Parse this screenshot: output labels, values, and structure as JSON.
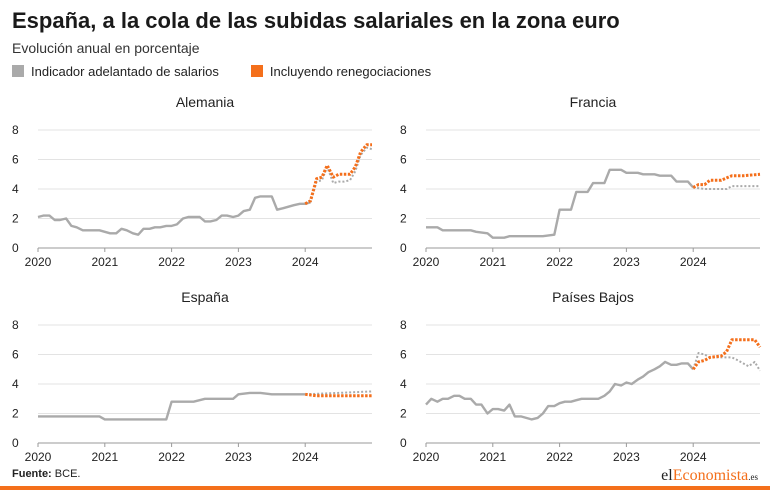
{
  "header": {
    "title": "España, a la cola de las subidas salariales en la zona euro",
    "subtitle": "Evolución anual en porcentaje"
  },
  "legend": {
    "items": [
      {
        "label": "Indicador adelantado de salarios",
        "color": "#aaaaaa"
      },
      {
        "label": "Incluyendo renegociaciones",
        "color": "#f46f1b"
      }
    ]
  },
  "footer": {
    "source_label": "Fuente:",
    "source_value": "BCE.",
    "brand_part1": "el",
    "brand_part2": "Economista",
    "brand_part3": ".es"
  },
  "chart_data": [
    {
      "type": "line",
      "title": "Alemania",
      "xlim": [
        2020,
        2025
      ],
      "ylim": [
        0,
        8
      ],
      "yticks": [
        0,
        2,
        4,
        6,
        8
      ],
      "xticks": [
        "2020",
        "2021",
        "2022",
        "2023",
        "2024"
      ],
      "series": [
        {
          "name": "Indicador adelantado de salarios",
          "color": "#aaaaaa",
          "x": [
            2020.0,
            2020.08,
            2020.17,
            2020.25,
            2020.33,
            2020.42,
            2020.5,
            2020.58,
            2020.67,
            2020.75,
            2020.83,
            2020.92,
            2021.0,
            2021.08,
            2021.17,
            2021.25,
            2021.33,
            2021.42,
            2021.5,
            2021.58,
            2021.67,
            2021.75,
            2021.83,
            2021.92,
            2022.0,
            2022.08,
            2022.17,
            2022.25,
            2022.33,
            2022.42,
            2022.5,
            2022.58,
            2022.67,
            2022.75,
            2022.83,
            2022.92,
            2023.0,
            2023.08,
            2023.17,
            2023.25,
            2023.33,
            2023.42,
            2023.5,
            2023.58,
            2023.67,
            2023.75,
            2023.83,
            2023.92,
            2024.0,
            2024.08
          ],
          "values": [
            2.1,
            2.2,
            2.2,
            1.9,
            1.9,
            2.0,
            1.5,
            1.4,
            1.2,
            1.2,
            1.2,
            1.2,
            1.1,
            1.0,
            1.0,
            1.3,
            1.2,
            1.0,
            0.9,
            1.3,
            1.3,
            1.4,
            1.4,
            1.5,
            1.5,
            1.6,
            2.0,
            2.1,
            2.1,
            2.1,
            1.8,
            1.8,
            1.9,
            2.2,
            2.2,
            2.1,
            2.2,
            2.5,
            2.6,
            3.4,
            3.5,
            3.5,
            3.5,
            2.6,
            2.7,
            2.8,
            2.9,
            3.0,
            3.0,
            3.1
          ]
        },
        {
          "name": "Indicador adelantado de salarios (proyección)",
          "color": "#aaaaaa",
          "dashed": true,
          "x": [
            2024.08,
            2024.17,
            2024.25,
            2024.33,
            2024.42,
            2024.5,
            2024.58,
            2024.67,
            2024.75,
            2024.83,
            2024.92,
            2025.0
          ],
          "values": [
            3.1,
            4.5,
            4.6,
            5.5,
            4.4,
            4.5,
            4.5,
            4.6,
            5.2,
            6.3,
            6.8,
            6.7
          ]
        },
        {
          "name": "Incluyendo renegociaciones",
          "color": "#f46f1b",
          "x": [
            2024.0,
            2024.08,
            2024.17,
            2024.25,
            2024.33,
            2024.42,
            2024.5,
            2024.58,
            2024.67,
            2024.75,
            2024.83,
            2024.92,
            2025.0
          ],
          "values": [
            3.0,
            3.2,
            4.7,
            4.8,
            5.6,
            4.8,
            5.0,
            5.0,
            5.0,
            5.5,
            6.5,
            7.0,
            7.0
          ]
        }
      ]
    },
    {
      "type": "line",
      "title": "Francia",
      "xlim": [
        2020,
        2025
      ],
      "ylim": [
        0,
        8
      ],
      "yticks": [
        0,
        2,
        4,
        6,
        8
      ],
      "xticks": [
        "2020",
        "2021",
        "2022",
        "2023",
        "2024"
      ],
      "series": [
        {
          "name": "Indicador adelantado de salarios",
          "color": "#aaaaaa",
          "x": [
            2020.0,
            2020.17,
            2020.25,
            2020.5,
            2020.67,
            2020.75,
            2020.92,
            2021.0,
            2021.17,
            2021.25,
            2021.5,
            2021.75,
            2021.92,
            2022.0,
            2022.17,
            2022.25,
            2022.42,
            2022.5,
            2022.67,
            2022.75,
            2022.92,
            2023.0,
            2023.17,
            2023.25,
            2023.42,
            2023.5,
            2023.67,
            2023.75,
            2023.92,
            2024.0
          ],
          "values": [
            1.4,
            1.4,
            1.2,
            1.2,
            1.2,
            1.1,
            1.0,
            0.7,
            0.7,
            0.8,
            0.8,
            0.8,
            0.9,
            2.6,
            2.6,
            3.8,
            3.8,
            4.4,
            4.4,
            5.3,
            5.3,
            5.1,
            5.1,
            5.0,
            5.0,
            4.9,
            4.9,
            4.5,
            4.5,
            4.1
          ]
        },
        {
          "name": "Indicador adelantado de salarios (proyección)",
          "color": "#aaaaaa",
          "dashed": true,
          "x": [
            2024.0,
            2024.17,
            2024.25,
            2024.5,
            2024.58,
            2024.75,
            2025.0
          ],
          "values": [
            4.1,
            4.0,
            4.0,
            4.0,
            4.2,
            4.2,
            4.2
          ]
        },
        {
          "name": "Incluyendo renegociaciones",
          "color": "#f46f1b",
          "x": [
            2024.0,
            2024.08,
            2024.17,
            2024.25,
            2024.42,
            2024.58,
            2024.75,
            2025.0
          ],
          "values": [
            4.1,
            4.3,
            4.3,
            4.6,
            4.6,
            4.9,
            4.9,
            5.0
          ]
        }
      ]
    },
    {
      "type": "line",
      "title": "España",
      "xlim": [
        2020,
        2025
      ],
      "ylim": [
        0,
        8
      ],
      "yticks": [
        0,
        2,
        4,
        6,
        8
      ],
      "xticks": [
        "2020",
        "2021",
        "2022",
        "2023",
        "2024"
      ],
      "series": [
        {
          "name": "Indicador adelantado de salarios",
          "color": "#aaaaaa",
          "x": [
            2020.0,
            2020.5,
            2020.92,
            2021.0,
            2021.5,
            2021.58,
            2021.75,
            2021.92,
            2022.0,
            2022.33,
            2022.5,
            2022.92,
            2023.0,
            2023.17,
            2023.33,
            2023.5,
            2023.67,
            2024.0
          ],
          "values": [
            1.8,
            1.8,
            1.8,
            1.6,
            1.6,
            1.6,
            1.6,
            1.6,
            2.8,
            2.8,
            3.0,
            3.0,
            3.3,
            3.4,
            3.4,
            3.3,
            3.3,
            3.3
          ]
        },
        {
          "name": "Indicador adelantado de salarios (proyección)",
          "color": "#aaaaaa",
          "dashed": true,
          "x": [
            2024.0,
            2024.5,
            2025.0
          ],
          "values": [
            3.3,
            3.4,
            3.5
          ]
        },
        {
          "name": "Incluyendo renegociaciones",
          "color": "#f46f1b",
          "x": [
            2024.0,
            2024.17,
            2025.0
          ],
          "values": [
            3.3,
            3.2,
            3.2
          ]
        }
      ]
    },
    {
      "type": "line",
      "title": "Países Bajos",
      "xlim": [
        2020,
        2025
      ],
      "ylim": [
        0,
        8
      ],
      "yticks": [
        0,
        2,
        4,
        6,
        8
      ],
      "xticks": [
        "2020",
        "2021",
        "2022",
        "2023",
        "2024"
      ],
      "series": [
        {
          "name": "Indicador adelantado de salarios",
          "color": "#aaaaaa",
          "x": [
            2020.0,
            2020.08,
            2020.17,
            2020.25,
            2020.33,
            2020.42,
            2020.5,
            2020.58,
            2020.67,
            2020.75,
            2020.83,
            2020.92,
            2021.0,
            2021.08,
            2021.17,
            2021.25,
            2021.33,
            2021.42,
            2021.5,
            2021.58,
            2021.67,
            2021.75,
            2021.83,
            2021.92,
            2022.0,
            2022.08,
            2022.17,
            2022.25,
            2022.33,
            2022.42,
            2022.5,
            2022.58,
            2022.67,
            2022.75,
            2022.83,
            2022.92,
            2023.0,
            2023.08,
            2023.17,
            2023.25,
            2023.33,
            2023.42,
            2023.5,
            2023.58,
            2023.67,
            2023.75,
            2023.83,
            2023.92,
            2024.0
          ],
          "values": [
            2.6,
            3.0,
            2.8,
            3.0,
            3.0,
            3.2,
            3.2,
            3.0,
            3.0,
            2.6,
            2.6,
            2.0,
            2.3,
            2.3,
            2.2,
            2.6,
            1.8,
            1.8,
            1.7,
            1.6,
            1.7,
            2.0,
            2.5,
            2.5,
            2.7,
            2.8,
            2.8,
            2.9,
            3.0,
            3.0,
            3.0,
            3.0,
            3.2,
            3.5,
            4.0,
            3.9,
            4.1,
            4.0,
            4.3,
            4.5,
            4.8,
            5.0,
            5.2,
            5.5,
            5.3,
            5.3,
            5.4,
            5.4,
            5.0
          ]
        },
        {
          "name": "Indicador adelantado de salarios (proyección)",
          "color": "#aaaaaa",
          "dashed": true,
          "x": [
            2024.0,
            2024.08,
            2024.17,
            2024.25,
            2024.42,
            2024.58,
            2024.67,
            2024.75,
            2024.83,
            2024.92,
            2025.0
          ],
          "values": [
            5.0,
            6.1,
            6.0,
            5.8,
            5.8,
            5.8,
            5.6,
            5.4,
            5.2,
            5.5,
            4.9
          ]
        },
        {
          "name": "Incluyendo renegociaciones",
          "color": "#f46f1b",
          "x": [
            2024.0,
            2024.08,
            2024.17,
            2024.25,
            2024.42,
            2024.5,
            2024.58,
            2024.92,
            2025.0
          ],
          "values": [
            5.0,
            5.5,
            5.6,
            5.8,
            5.9,
            6.2,
            7.0,
            7.0,
            6.5
          ]
        }
      ]
    }
  ]
}
